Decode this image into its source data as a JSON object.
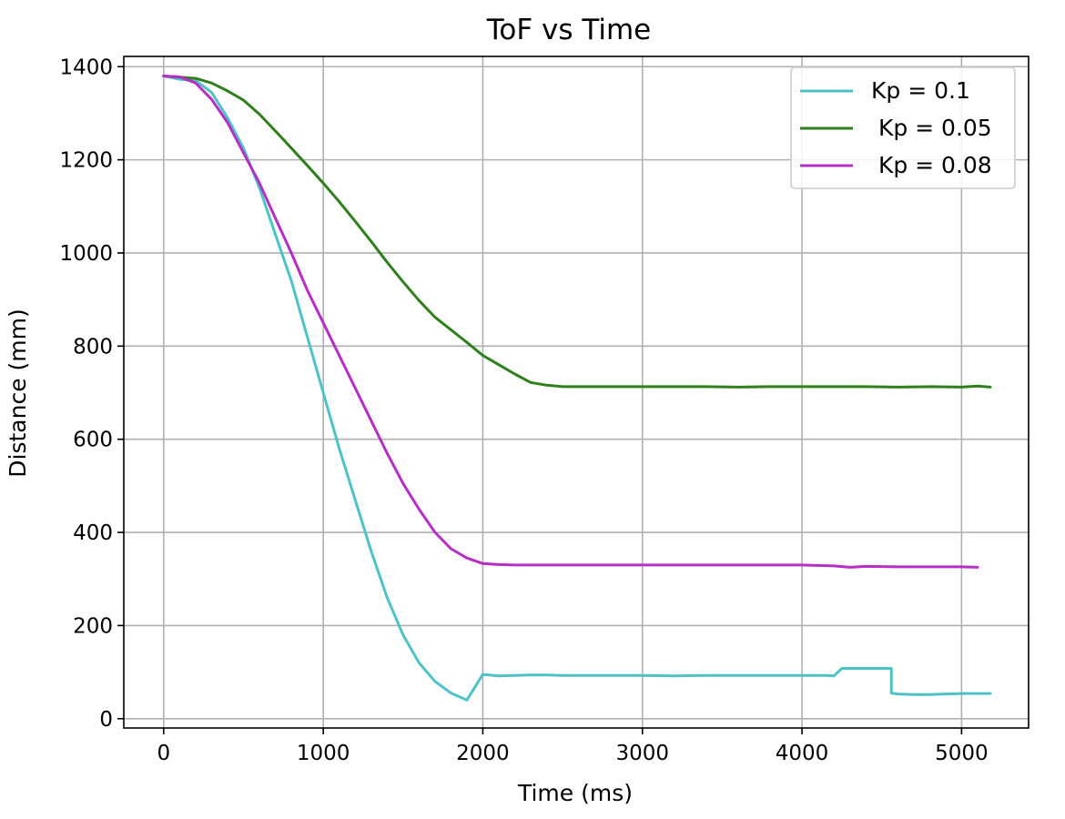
{
  "chart_data": {
    "type": "line",
    "title": "ToF vs Time",
    "xlabel": "Time (ms)",
    "ylabel": "Distance (mm)",
    "xlim": [
      -250,
      5420
    ],
    "ylim": [
      -20,
      1422
    ],
    "xticks": [
      0,
      1000,
      2000,
      3000,
      4000,
      5000
    ],
    "yticks": [
      0,
      200,
      400,
      600,
      800,
      1000,
      1200,
      1400
    ],
    "grid": true,
    "legend_position": "top-right",
    "series": [
      {
        "name": "Kp = 0.1",
        "color": "#4dc3c7",
        "x": [
          0,
          100,
          200,
          300,
          400,
          500,
          600,
          700,
          800,
          900,
          1000,
          1100,
          1200,
          1300,
          1400,
          1500,
          1600,
          1700,
          1800,
          1900,
          2000,
          2100,
          2200,
          2300,
          2400,
          2500,
          2600,
          2700,
          2800,
          2900,
          3000,
          3200,
          3400,
          3600,
          3800,
          4000,
          4150,
          4200,
          4250,
          4300,
          4400,
          4500,
          4560,
          4560,
          4600,
          4700,
          4800,
          4900,
          5000,
          5100,
          5180
        ],
        "y": [
          1380,
          1373,
          1370,
          1345,
          1290,
          1225,
          1140,
          1040,
          940,
          820,
          700,
          580,
          470,
          360,
          260,
          180,
          120,
          80,
          55,
          40,
          95,
          92,
          93,
          94,
          94,
          93,
          93,
          93,
          93,
          93,
          93,
          92,
          93,
          93,
          93,
          93,
          93,
          92,
          108,
          108,
          108,
          108,
          108,
          55,
          53,
          52,
          52,
          53,
          54,
          54,
          54
        ]
      },
      {
        "name": " Kp = 0.05",
        "color": "#2f7f1d",
        "x": [
          0,
          200,
          300,
          400,
          500,
          600,
          700,
          800,
          900,
          1000,
          1100,
          1200,
          1300,
          1400,
          1500,
          1600,
          1700,
          1800,
          1900,
          2000,
          2100,
          2200,
          2300,
          2400,
          2500,
          2600,
          2700,
          2800,
          2900,
          3000,
          3200,
          3400,
          3600,
          3800,
          4000,
          4200,
          4400,
          4600,
          4800,
          5000,
          5100,
          5180
        ],
        "y": [
          1380,
          1375,
          1365,
          1348,
          1328,
          1298,
          1262,
          1225,
          1188,
          1150,
          1110,
          1068,
          1025,
          980,
          938,
          898,
          862,
          835,
          808,
          780,
          760,
          740,
          722,
          716,
          713,
          713,
          713,
          713,
          713,
          713,
          713,
          713,
          712,
          713,
          713,
          713,
          713,
          712,
          713,
          712,
          714,
          712
        ]
      },
      {
        "name": " Kp = 0.08",
        "color": "#b62ec6",
        "x": [
          0,
          100,
          200,
          300,
          400,
          500,
          600,
          700,
          800,
          900,
          1000,
          1100,
          1200,
          1300,
          1400,
          1500,
          1600,
          1700,
          1800,
          1900,
          2000,
          2100,
          2200,
          2400,
          2600,
          2800,
          3000,
          3200,
          3400,
          3600,
          3800,
          4000,
          4200,
          4300,
          4400,
          4600,
          4800,
          5000,
          5100
        ],
        "y": [
          1380,
          1378,
          1365,
          1330,
          1280,
          1215,
          1150,
          1075,
          1000,
          920,
          850,
          780,
          710,
          640,
          570,
          505,
          450,
          400,
          365,
          345,
          333,
          331,
          330,
          330,
          330,
          330,
          330,
          330,
          330,
          330,
          330,
          330,
          328,
          325,
          327,
          326,
          326,
          326,
          325
        ]
      }
    ]
  }
}
